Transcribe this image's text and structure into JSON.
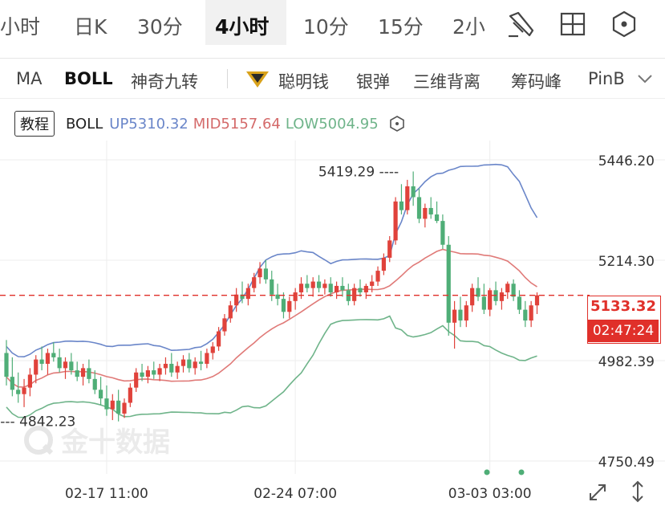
{
  "tabs": [
    {
      "label": "小时",
      "active": false
    },
    {
      "label": "日K",
      "active": false
    },
    {
      "label": "30分",
      "active": false
    },
    {
      "label": "4小时",
      "active": true
    },
    {
      "label": "10分",
      "active": false
    },
    {
      "label": "15分",
      "active": false
    },
    {
      "label": "2小",
      "active": false
    }
  ],
  "toolbar_icons": [
    "draw-pen-icon",
    "grid-layout-icon",
    "settings-hexagon-icon"
  ],
  "indicators": [
    {
      "label": "MA",
      "active": false
    },
    {
      "label": "BOLL",
      "active": true
    },
    {
      "label": "神奇九转",
      "active": false
    },
    {
      "label": "聪明钱",
      "active": false,
      "badge": "diamond-icon"
    },
    {
      "label": "银弹",
      "active": false
    },
    {
      "label": "三维背离",
      "active": false
    },
    {
      "label": "筹码峰",
      "active": false
    },
    {
      "label": "PinB",
      "active": false
    }
  ],
  "legend": {
    "tutorial_label": "教程",
    "name": "BOLL",
    "up": "UP5310.32",
    "mid": "MID5157.64",
    "low": "LOW5004.95"
  },
  "price_tag": {
    "price": "5133.32",
    "countdown": "02:47:24"
  },
  "watermark": "金十数据",
  "colors": {
    "up_candle": "#e0423b",
    "down_candle": "#4fae77",
    "boll_up": "#6a86c9",
    "boll_mid": "#e07a78",
    "boll_low": "#6fb48a",
    "current_price": "#e0302a"
  },
  "chart_data": {
    "type": "candlestick",
    "indicator": "BOLL",
    "y_ticks": [
      5446.2,
      5214.3,
      4982.39,
      4750.49
    ],
    "y_tick_labels": [
      "5446.20",
      "5214.30",
      "4982.39",
      "4750.49"
    ],
    "ylim": [
      4750.49,
      5446.2
    ],
    "x_tick_labels": [
      "02-17 11:00",
      "02-24 07:00",
      "03-03 03:00"
    ],
    "annotations": [
      {
        "label": "5419.29",
        "value": 5419.29,
        "type": "high"
      },
      {
        "label": "4842.23",
        "value": 4842.23,
        "type": "low"
      }
    ],
    "current_price": 5133.32,
    "countdown": "02:47:24",
    "boll_last": {
      "up": 5310.32,
      "mid": 5157.64,
      "low": 5004.95
    },
    "candles_ohlc": [
      [
        5000,
        5030,
        4925,
        4945
      ],
      [
        4945,
        4990,
        4900,
        4915
      ],
      [
        4915,
        4955,
        4885,
        4905
      ],
      [
        4905,
        4940,
        4875,
        4920
      ],
      [
        4920,
        4965,
        4900,
        4950
      ],
      [
        4950,
        4995,
        4930,
        4985
      ],
      [
        4985,
        5015,
        4960,
        4975
      ],
      [
        4975,
        5010,
        4950,
        5000
      ],
      [
        5000,
        5025,
        4980,
        4990
      ],
      [
        4990,
        5010,
        4955,
        4965
      ],
      [
        4965,
        4990,
        4940,
        4980
      ],
      [
        4980,
        5000,
        4950,
        4960
      ],
      [
        4960,
        4980,
        4935,
        4945
      ],
      [
        4945,
        4975,
        4925,
        4965
      ],
      [
        4965,
        4985,
        4930,
        4940
      ],
      [
        4940,
        4960,
        4905,
        4915
      ],
      [
        4915,
        4945,
        4880,
        4895
      ],
      [
        4895,
        4925,
        4855,
        4870
      ],
      [
        4870,
        4905,
        4845,
        4890
      ],
      [
        4890,
        4915,
        4842,
        4860
      ],
      [
        4860,
        4895,
        4850,
        4885
      ],
      [
        4885,
        4930,
        4875,
        4920
      ],
      [
        4920,
        4965,
        4910,
        4955
      ],
      [
        4955,
        4975,
        4935,
        4945
      ],
      [
        4945,
        4970,
        4930,
        4960
      ],
      [
        4960,
        4980,
        4940,
        4950
      ],
      [
        4950,
        4975,
        4935,
        4965
      ],
      [
        4965,
        4990,
        4950,
        4975
      ],
      [
        4975,
        5000,
        4945,
        4955
      ],
      [
        4955,
        4980,
        4940,
        4970
      ],
      [
        4970,
        4995,
        4955,
        4985
      ],
      [
        4985,
        5000,
        4955,
        4965
      ],
      [
        4965,
        4990,
        4950,
        4980
      ],
      [
        4980,
        5005,
        4960,
        4975
      ],
      [
        4975,
        5010,
        4965,
        5000
      ],
      [
        5000,
        5025,
        4985,
        5015
      ],
      [
        5015,
        5060,
        5005,
        5050
      ],
      [
        5050,
        5090,
        5040,
        5080
      ],
      [
        5080,
        5120,
        5070,
        5110
      ],
      [
        5110,
        5150,
        5095,
        5135
      ],
      [
        5135,
        5165,
        5115,
        5125
      ],
      [
        5125,
        5160,
        5110,
        5150
      ],
      [
        5150,
        5185,
        5140,
        5175
      ],
      [
        5175,
        5210,
        5160,
        5195
      ],
      [
        5195,
        5215,
        5160,
        5170
      ],
      [
        5170,
        5190,
        5120,
        5135
      ],
      [
        5135,
        5160,
        5110,
        5125
      ],
      [
        5125,
        5140,
        5080,
        5095
      ],
      [
        5095,
        5130,
        5080,
        5120
      ],
      [
        5120,
        5150,
        5100,
        5140
      ],
      [
        5140,
        5175,
        5125,
        5160
      ],
      [
        5160,
        5180,
        5140,
        5150
      ],
      [
        5150,
        5175,
        5130,
        5165
      ],
      [
        5165,
        5180,
        5140,
        5150
      ],
      [
        5150,
        5170,
        5135,
        5160
      ],
      [
        5160,
        5175,
        5130,
        5140
      ],
      [
        5140,
        5165,
        5125,
        5155
      ],
      [
        5155,
        5175,
        5130,
        5145
      ],
      [
        5145,
        5160,
        5110,
        5120
      ],
      [
        5120,
        5160,
        5110,
        5150
      ],
      [
        5150,
        5170,
        5130,
        5140
      ],
      [
        5140,
        5160,
        5125,
        5155
      ],
      [
        5155,
        5180,
        5140,
        5165
      ],
      [
        5165,
        5200,
        5155,
        5190
      ],
      [
        5190,
        5230,
        5180,
        5220
      ],
      [
        5220,
        5270,
        5210,
        5260
      ],
      [
        5260,
        5360,
        5250,
        5350
      ],
      [
        5350,
        5390,
        5320,
        5330
      ],
      [
        5330,
        5400,
        5320,
        5385
      ],
      [
        5385,
        5419.29,
        5340,
        5360
      ],
      [
        5360,
        5380,
        5300,
        5310
      ],
      [
        5310,
        5345,
        5290,
        5335
      ],
      [
        5335,
        5360,
        5310,
        5320
      ],
      [
        5320,
        5350,
        5300,
        5305
      ],
      [
        5305,
        5320,
        5240,
        5250
      ],
      [
        5250,
        5270,
        5040,
        5070
      ],
      [
        5070,
        5120,
        5010,
        5100
      ],
      [
        5100,
        5130,
        5060,
        5075
      ],
      [
        5075,
        5120,
        5060,
        5110
      ],
      [
        5110,
        5160,
        5095,
        5150
      ],
      [
        5150,
        5175,
        5120,
        5130
      ],
      [
        5130,
        5160,
        5090,
        5100
      ],
      [
        5100,
        5150,
        5085,
        5145
      ],
      [
        5145,
        5165,
        5110,
        5120
      ],
      [
        5120,
        5150,
        5100,
        5140
      ],
      [
        5140,
        5165,
        5125,
        5160
      ],
      [
        5160,
        5170,
        5120,
        5130
      ],
      [
        5130,
        5145,
        5090,
        5100
      ],
      [
        5100,
        5120,
        5060,
        5075
      ],
      [
        5075,
        5120,
        5060,
        5110
      ],
      [
        5110,
        5140,
        5090,
        5133.32
      ]
    ]
  }
}
